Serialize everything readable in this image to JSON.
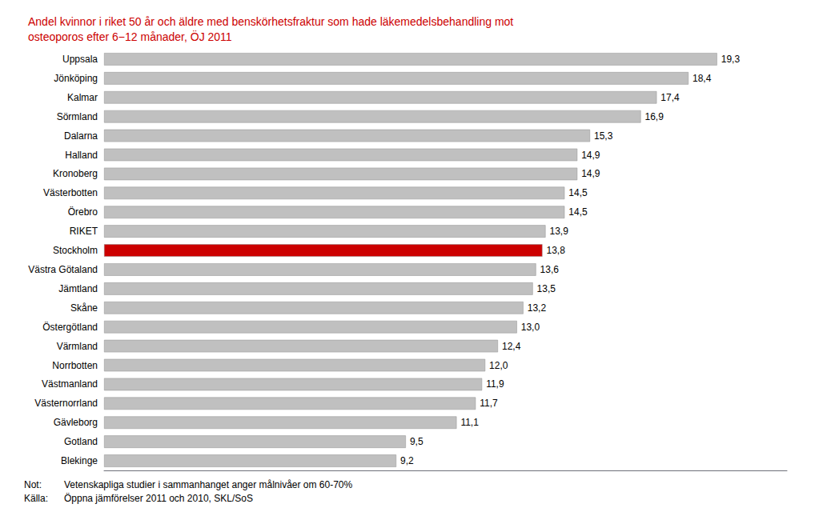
{
  "chart_data": {
    "type": "bar",
    "orientation": "horizontal",
    "title": "Andel kvinnor i riket 50 år och äldre med benskörhetsfraktur som hade läkemedelsbehandling mot\nosteoporos efter 6−12 månader, ÖJ 2011",
    "categories": [
      "Uppsala",
      "Jönköping",
      "Kalmar",
      "Sörmland",
      "Dalarna",
      "Halland",
      "Kronoberg",
      "Västerbotten",
      "Örebro",
      "RIKET",
      "Stockholm",
      "Västra Götaland",
      "Jämtland",
      "Skåne",
      "Östergötland",
      "Värmland",
      "Norrbotten",
      "Västmanland",
      "Västernorrland",
      "Gävleborg",
      "Gotland",
      "Blekinge"
    ],
    "values": [
      19.3,
      18.4,
      17.4,
      16.9,
      15.3,
      14.9,
      14.9,
      14.5,
      14.5,
      13.9,
      13.8,
      13.6,
      13.5,
      13.2,
      13.0,
      12.4,
      12.0,
      11.9,
      11.7,
      11.1,
      9.5,
      9.2
    ],
    "value_labels": [
      "19,3",
      "18,4",
      "17,4",
      "16,9",
      "15,3",
      "14,9",
      "14,9",
      "14,5",
      "14,5",
      "13,9",
      "13,8",
      "13,6",
      "13,5",
      "13,2",
      "13,0",
      "12,4",
      "12,0",
      "11,9",
      "11,7",
      "11,1",
      "9,5",
      "9,2"
    ],
    "colors": [
      "#c0c0c0",
      "#c0c0c0",
      "#c0c0c0",
      "#c0c0c0",
      "#c0c0c0",
      "#c0c0c0",
      "#c0c0c0",
      "#c0c0c0",
      "#c0c0c0",
      "#c0c0c0",
      "#cc0000",
      "#c0c0c0",
      "#c0c0c0",
      "#c0c0c0",
      "#c0c0c0",
      "#c0c0c0",
      "#c0c0c0",
      "#c0c0c0",
      "#c0c0c0",
      "#c0c0c0",
      "#c0c0c0",
      "#c0c0c0"
    ],
    "xlim": [
      0,
      21.5
    ],
    "data_labels": true,
    "tick_labels": "y",
    "grid": false,
    "annotations": [
      {
        "label": "Not:",
        "text": "Vetenskapliga studier i sammanhanget anger målnivåer om 60-70%"
      },
      {
        "label": "Källa:",
        "text": "Öppna jämförelser 2011 och 2010, SKL/SoS"
      }
    ]
  }
}
